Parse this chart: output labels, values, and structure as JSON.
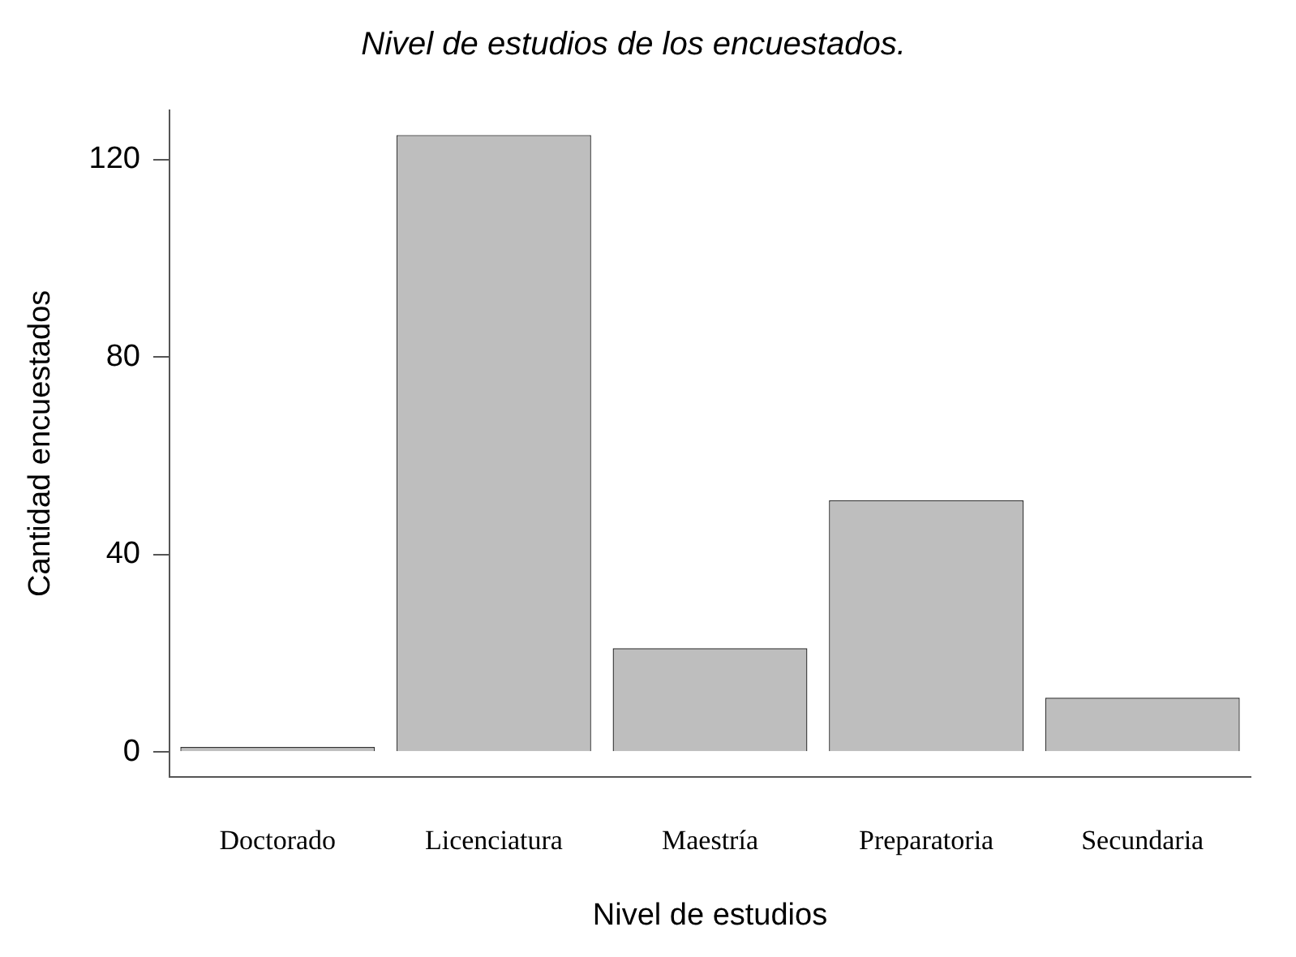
{
  "chart_data": {
    "type": "bar",
    "title": "Nivel de estudios de los encuestados.",
    "xlabel": "Nivel de estudios",
    "ylabel": "Cantidad encuestados",
    "categories": [
      "Doctorado",
      "Licenciatura",
      "Maestría",
      "Preparatoria",
      "Secundaria"
    ],
    "values": [
      1,
      125,
      21,
      51,
      11
    ],
    "color": "#bebebe",
    "ylim": [
      -5,
      130
    ],
    "yticks": [
      0,
      40,
      80,
      120
    ],
    "grid": false,
    "legend": false
  }
}
